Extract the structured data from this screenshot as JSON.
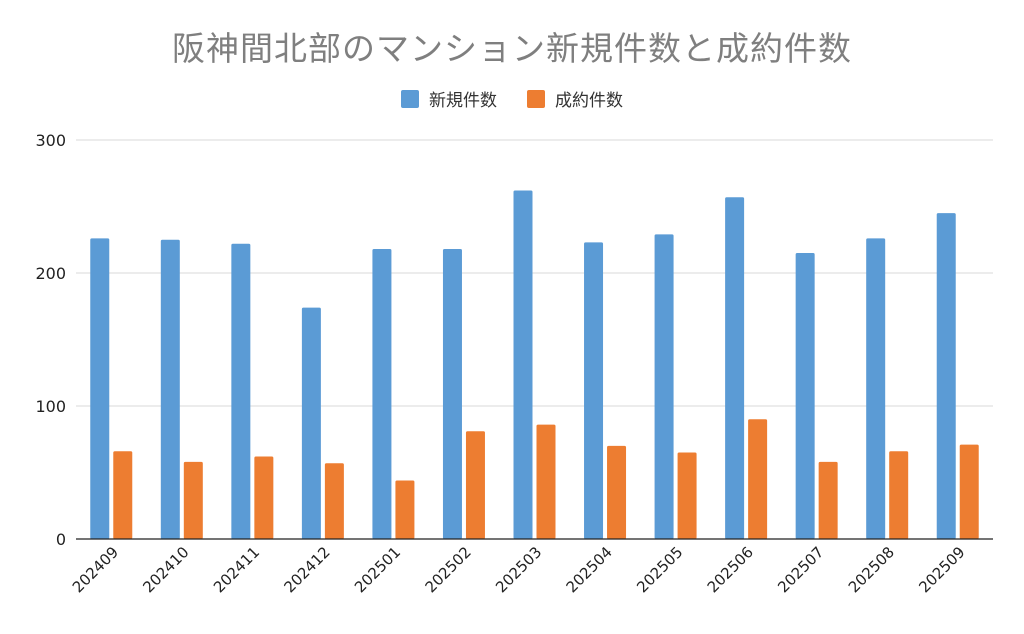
{
  "chart_data": {
    "type": "bar",
    "title": "阪神間北部のマンション新規件数と成約件数",
    "xlabel": "",
    "ylabel": "",
    "ylim": [
      0,
      300
    ],
    "yticks": [
      0,
      100,
      200,
      300
    ],
    "grid": true,
    "legend_position": "top-center",
    "categories": [
      "202409",
      "202410",
      "202411",
      "202412",
      "202501",
      "202502",
      "202503",
      "202504",
      "202505",
      "202506",
      "202507",
      "202508",
      "202509"
    ],
    "series": [
      {
        "name": "新規件数",
        "color": "#5b9bd5",
        "values": [
          226,
          225,
          222,
          174,
          218,
          218,
          262,
          223,
          229,
          257,
          215,
          226,
          245
        ]
      },
      {
        "name": "成約件数",
        "color": "#ed7d31",
        "values": [
          66,
          58,
          62,
          57,
          44,
          81,
          86,
          70,
          65,
          90,
          58,
          66,
          71
        ]
      }
    ]
  }
}
